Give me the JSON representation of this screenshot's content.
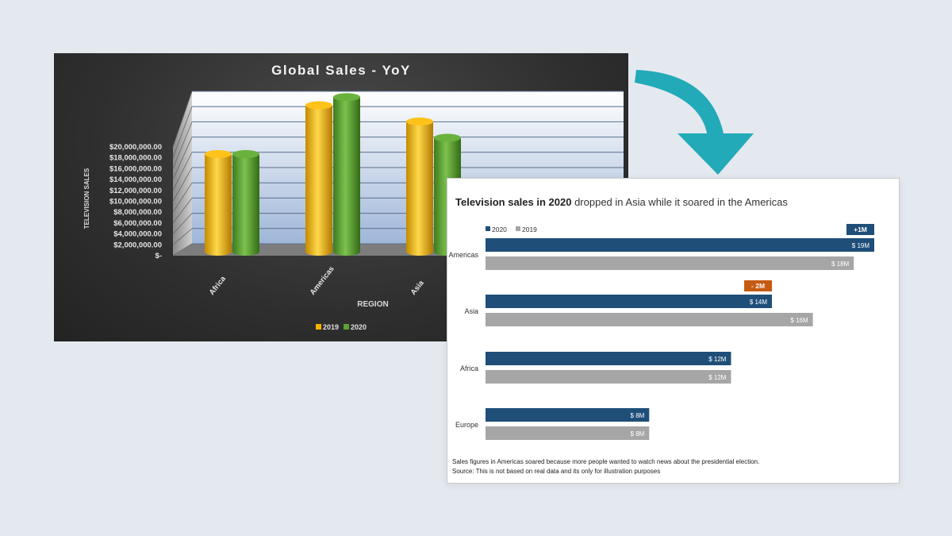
{
  "chart_data": [
    {
      "type": "bar",
      "title": "Global Sales - YoY",
      "xlabel": "REGION",
      "ylabel": "TELEVISION SALES",
      "categories": [
        "Africa",
        "Americas",
        "Asia"
      ],
      "series": [
        {
          "name": "2019",
          "values": [
            12000000,
            18000000,
            16000000
          ]
        },
        {
          "name": "2020",
          "values": [
            12000000,
            19000000,
            14000000
          ]
        }
      ],
      "ylim": [
        0,
        20000000
      ],
      "y_ticks": [
        "$-",
        "$2,000,000.00",
        "$4,000,000.00",
        "$6,000,000.00",
        "$8,000,000.00",
        "$10,000,000.00",
        "$12,000,000.00",
        "$14,000,000.00",
        "$16,000,000.00",
        "$18,000,000.00",
        "$20,000,000.00"
      ],
      "legend": [
        "2019",
        "2020"
      ],
      "legend_position": "bottom",
      "grid": true,
      "colors": {
        "2019": "#f5b400",
        "2020": "#5ca234"
      }
    },
    {
      "type": "bar",
      "orientation": "horizontal",
      "title_bold": "Television sales in 2020",
      "title_rest": " dropped in Asia while it soared in the Americas",
      "categories": [
        "Americas",
        "Asia",
        "Africa",
        "Europe"
      ],
      "series": [
        {
          "name": "2020",
          "values": [
            19,
            14,
            12,
            8
          ],
          "labels": [
            "$ 19M",
            "$ 14M",
            "$ 12M",
            "$ 8M"
          ]
        },
        {
          "name": "2019",
          "values": [
            18,
            16,
            12,
            8
          ],
          "labels": [
            "$ 18M",
            "$ 16M",
            "$ 12M",
            "$ 8M"
          ]
        }
      ],
      "xlim": [
        0,
        19
      ],
      "annotations": [
        {
          "category": "Americas",
          "text": "+1M",
          "color": "#1f4e79"
        },
        {
          "category": "Asia",
          "text": "- 2M",
          "color": "#c55a11"
        }
      ],
      "legend": [
        "2020",
        "2019"
      ],
      "legend_position": "top-left",
      "colors": {
        "2020": "#1f4e79",
        "2019": "#a6a6a6"
      },
      "footnote_1": "Sales figures in Americas soared because more people wanted to watch news about the presidential election.",
      "footnote_2": "Source: This is not based on real data and its only for illustration purposes"
    }
  ],
  "arrow_color": "#22aab8"
}
